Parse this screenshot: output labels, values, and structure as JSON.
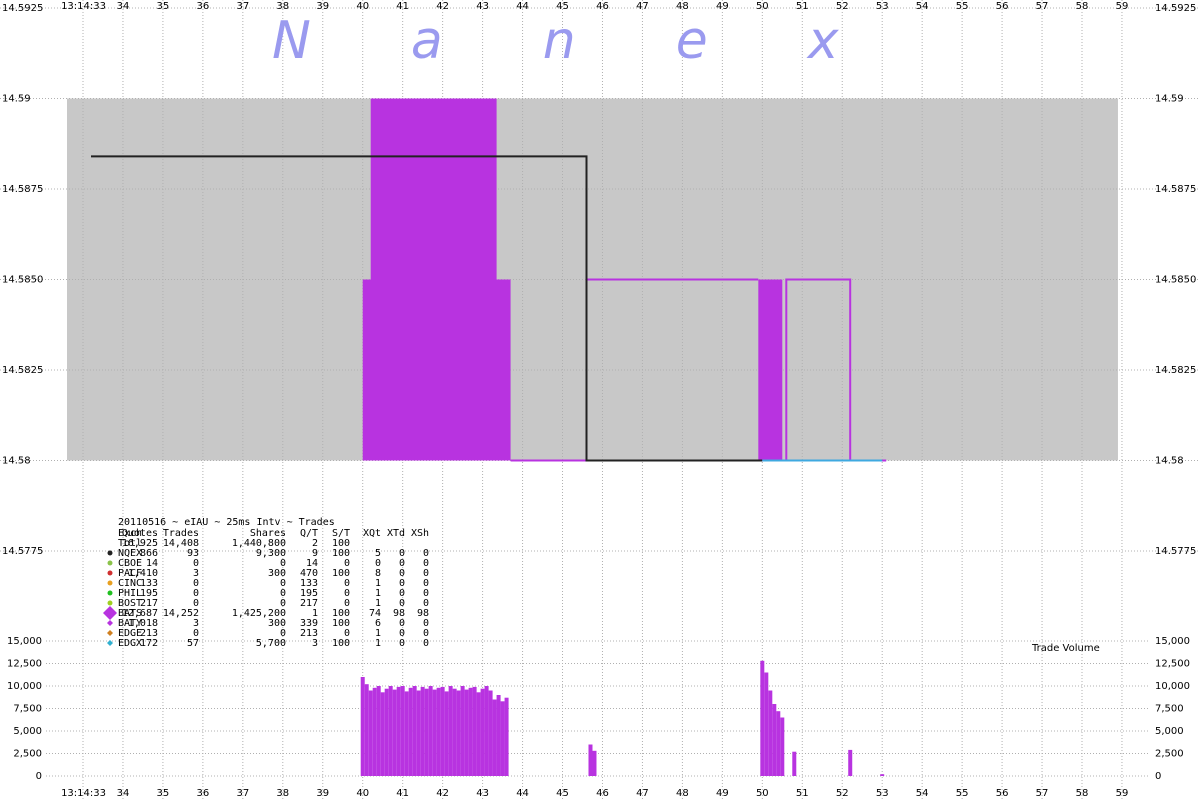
{
  "chart_data": [
    {
      "type": "line",
      "watermark": "Nanex",
      "xlim": [
        30.923,
        60.953
      ],
      "xticks": [
        {
          "value": 33,
          "label": "13:14:33"
        },
        34,
        35,
        36,
        37,
        38,
        39,
        40,
        41,
        42,
        43,
        44,
        45,
        46,
        47,
        48,
        49,
        50,
        51,
        52,
        53,
        54,
        55,
        56,
        57,
        58,
        59
      ],
      "ylim": [
        14.5775,
        14.5925
      ],
      "yticks": [
        {
          "value": 14.5775,
          "label": "14.5775"
        },
        14.58,
        {
          "value": 14.5825,
          "label": "14.5825"
        },
        {
          "value": 14.585,
          "label": "14.5850"
        },
        {
          "value": 14.5875,
          "label": "14.5875"
        },
        14.59,
        {
          "value": 14.5925,
          "label": "14.5925"
        }
      ],
      "grid": true,
      "band": {
        "x": [
          32.6,
          58.9
        ],
        "low": 14.58,
        "high": 14.59,
        "color": "#c8c8c8"
      },
      "blocks": [
        {
          "x": [
            40.0,
            43.7
          ],
          "low": 14.58,
          "high": 14.585,
          "color": "#b833e0"
        },
        {
          "x": [
            40.2,
            43.35
          ],
          "low": 14.585,
          "high": 14.59,
          "color": "#b833e0"
        },
        {
          "x": [
            49.9,
            50.5
          ],
          "low": 14.58,
          "high": 14.585,
          "color": "#b833e0"
        }
      ],
      "series": [
        {
          "color": "#b833e0",
          "x": [
            43.7,
            53.1
          ],
          "values": [
            14.58,
            14.58
          ]
        },
        {
          "color": "#b833e0",
          "x": [
            45.6,
            45.6,
            49.9,
            null,
            50.6,
            50.6,
            52.2,
            52.2
          ],
          "values": [
            14.58,
            14.585,
            14.585,
            null,
            14.58,
            14.585,
            14.585,
            14.58
          ]
        },
        {
          "color": "#222222",
          "x": [
            33.2,
            45.6,
            45.6,
            50.0
          ],
          "values": [
            14.5884,
            14.5884,
            14.58,
            14.58
          ]
        },
        {
          "color": "#3fa9e0",
          "x": [
            50.0,
            53.0
          ],
          "values": [
            14.58,
            14.58
          ]
        }
      ]
    },
    {
      "type": "bar",
      "title": "Trade Volume",
      "ylim": [
        0,
        15000
      ],
      "yticks": [
        0,
        {
          "value": 2500,
          "label": "2,500"
        },
        {
          "value": 5000,
          "label": "5,000"
        },
        {
          "value": 7500,
          "label": "7,500"
        },
        {
          "value": 10000,
          "label": "10,000"
        },
        {
          "value": 12500,
          "label": "12,500"
        },
        {
          "value": 15000,
          "label": "15,000"
        }
      ],
      "color": "#b833e0",
      "x": [
        40.0,
        40.1,
        40.2,
        40.3,
        40.4,
        40.5,
        40.6,
        40.7,
        40.8,
        40.9,
        41.0,
        41.1,
        41.2,
        41.3,
        41.4,
        41.5,
        41.6,
        41.7,
        41.8,
        41.9,
        42.0,
        42.1,
        42.2,
        42.3,
        42.4,
        42.5,
        42.6,
        42.7,
        42.8,
        42.9,
        43.0,
        43.1,
        43.2,
        43.3,
        43.4,
        43.5,
        43.6,
        45.7,
        45.8,
        50.0,
        50.1,
        50.2,
        50.3,
        50.4,
        50.5,
        50.8,
        52.2,
        53.0
      ],
      "values": [
        11000,
        10200,
        9500,
        9800,
        10000,
        9300,
        9700,
        10000,
        9600,
        9900,
        10000,
        9400,
        9800,
        10000,
        9500,
        9900,
        9700,
        10000,
        9600,
        9800,
        9900,
        9400,
        10000,
        9700,
        9500,
        10000,
        9600,
        9800,
        9900,
        9300,
        9700,
        10000,
        9500,
        8500,
        9000,
        8300,
        8700,
        3500,
        2800,
        12800,
        11500,
        9500,
        8000,
        7200,
        6500,
        2700,
        2900,
        200
      ]
    }
  ],
  "table": {
    "title": "20110516 ~ eIAU ~ 25ms Intv ~ Trades",
    "columns": [
      "Exch",
      "Quotes",
      "Trades",
      "Shares",
      "Q/T",
      "S/T",
      "XQt",
      "XTd",
      "XSh"
    ],
    "rows": [
      {
        "marker": null,
        "cells": [
          "Totl",
          "16,925",
          "14,408",
          "1,440,800",
          "2",
          "100"
        ]
      },
      {
        "marker": {
          "color": "#222222",
          "shape": "dot"
        },
        "cells": [
          "NQEX",
          "866",
          "93",
          "9,300",
          "9",
          "100",
          "5",
          "0",
          "0"
        ]
      },
      {
        "marker": {
          "color": "#8bc34a",
          "shape": "dot"
        },
        "cells": [
          "CBOE",
          "14",
          "0",
          "0",
          "14",
          "0",
          "0",
          "0",
          "0"
        ]
      },
      {
        "marker": {
          "color": "#d03030",
          "shape": "dot"
        },
        "cells": [
          "PACF",
          "1,410",
          "3",
          "300",
          "470",
          "100",
          "8",
          "0",
          "0"
        ]
      },
      {
        "marker": {
          "color": "#e8a020",
          "shape": "dot"
        },
        "cells": [
          "CINC",
          "133",
          "0",
          "0",
          "133",
          "0",
          "1",
          "0",
          "0"
        ]
      },
      {
        "marker": {
          "color": "#20c020",
          "shape": "dot"
        },
        "cells": [
          "PHIL",
          "195",
          "0",
          "0",
          "195",
          "0",
          "1",
          "0",
          "0"
        ]
      },
      {
        "marker": {
          "color": "#a0d020",
          "shape": "dot"
        },
        "cells": [
          "BOST",
          "217",
          "0",
          "0",
          "217",
          "0",
          "1",
          "0",
          "0"
        ]
      },
      {
        "marker": {
          "color": "#b833e0",
          "shape": "big-diamond"
        },
        "cells": [
          "BATS",
          "12,687",
          "14,252",
          "1,425,200",
          "1",
          "100",
          "74",
          "98",
          "98"
        ]
      },
      {
        "marker": {
          "color": "#b833e0",
          "shape": "diamond"
        },
        "cells": [
          "BATY",
          "1,018",
          "3",
          "300",
          "339",
          "100",
          "6",
          "0",
          "0"
        ]
      },
      {
        "marker": {
          "color": "#d08020",
          "shape": "diamond"
        },
        "cells": [
          "EDGE",
          "213",
          "0",
          "0",
          "213",
          "0",
          "1",
          "0",
          "0"
        ]
      },
      {
        "marker": {
          "color": "#30b0d0",
          "shape": "diamond"
        },
        "cells": [
          "EDGX",
          "172",
          "57",
          "5,700",
          "3",
          "100",
          "1",
          "0",
          "0"
        ]
      }
    ]
  }
}
